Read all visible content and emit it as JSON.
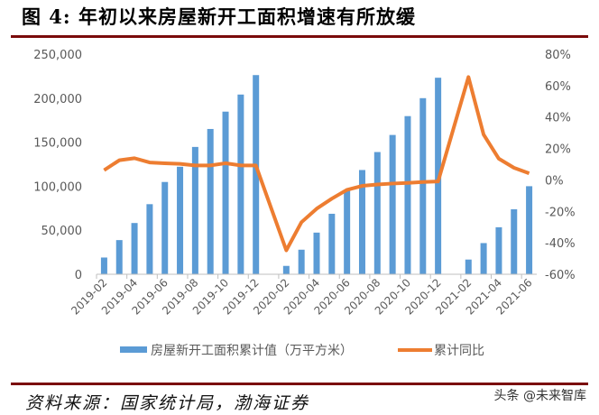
{
  "title": "图 4:  年初以来房屋新开工面积增速有所放缓",
  "source": "资料来源：国家统计局，渤海证券",
  "watermark": "头条 @未来智库",
  "chart_data": {
    "type": "bar+line",
    "categories": [
      "2019-02",
      "2019-03",
      "2019-04",
      "2019-05",
      "2019-06",
      "2019-07",
      "2019-08",
      "2019-09",
      "2019-10",
      "2019-11",
      "2019-12",
      "2020-01",
      "2020-02",
      "2020-03",
      "2020-04",
      "2020-05",
      "2020-06",
      "2020-07",
      "2020-08",
      "2020-09",
      "2020-10",
      "2020-11",
      "2020-12",
      "2021-01",
      "2021-02",
      "2021-03",
      "2021-04",
      "2021-05",
      "2021-06"
    ],
    "tick_labels": [
      "2019-02",
      "2019-04",
      "2019-06",
      "2019-08",
      "2019-10",
      "2019-12",
      "2020-02",
      "2020-04",
      "2020-06",
      "2020-08",
      "2020-10",
      "2020-12",
      "2021-02",
      "2021-04",
      "2021-06"
    ],
    "series": [
      {
        "name": "房屋新开工面积累计值（万平方米）",
        "type": "bar",
        "axis": "left",
        "color": "#5b9bd5",
        "values": [
          19000,
          38800,
          58200,
          79600,
          104800,
          122100,
          144600,
          165000,
          184700,
          204100,
          226200,
          null,
          9500,
          27900,
          47300,
          68700,
          95900,
          118400,
          138800,
          158200,
          179600,
          200000,
          223200,
          null,
          16700,
          35400,
          53400,
          73800,
          100000
        ]
      },
      {
        "name": "累计同比",
        "type": "line",
        "axis": "right",
        "color": "#ed7d31",
        "values": [
          6.2,
          12.5,
          13.8,
          11.1,
          10.6,
          10.2,
          9.2,
          9.2,
          10.6,
          9.2,
          9.2,
          null,
          -44.8,
          -26.9,
          -18.3,
          -11.9,
          -6.3,
          -3.8,
          -2.9,
          -2.3,
          -1.9,
          -1.3,
          -1.0,
          null,
          65.4,
          28.8,
          13.5,
          7.7,
          4.2
        ]
      }
    ],
    "left_axis": {
      "min": 0,
      "max": 250000,
      "ticks": [
        "0",
        "50,000",
        "100,000",
        "150,000",
        "200,000",
        "250,000"
      ]
    },
    "right_axis": {
      "min": -60,
      "max": 80,
      "ticks": [
        "-60%",
        "-40%",
        "-20%",
        "0%",
        "20%",
        "40%",
        "60%",
        "80%"
      ]
    },
    "grid": false,
    "legend": "bottom"
  }
}
